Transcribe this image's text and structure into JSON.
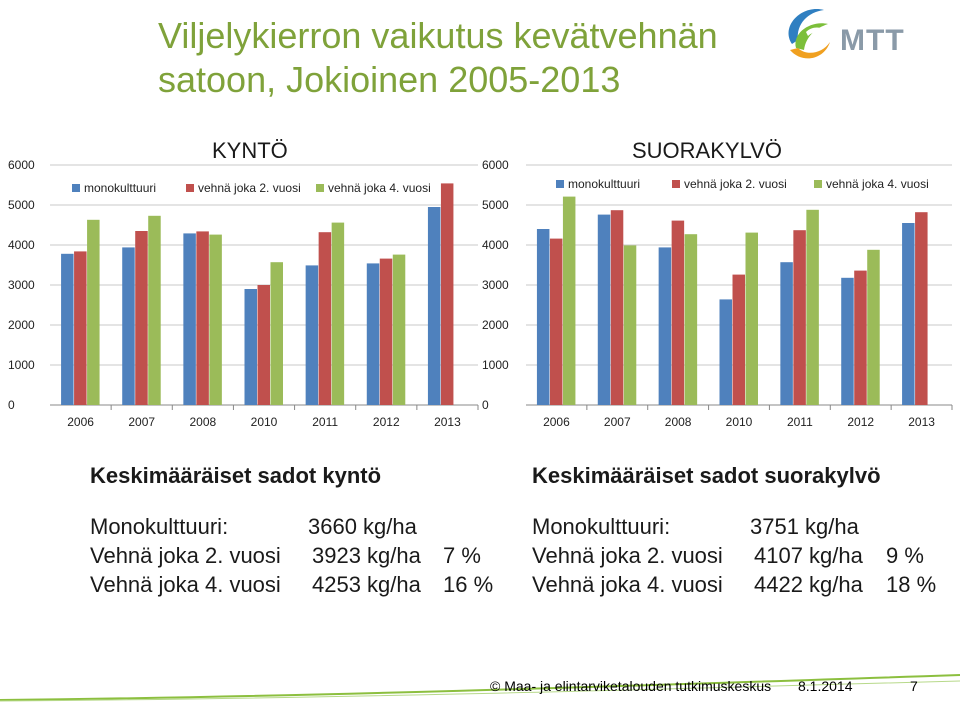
{
  "slide": {
    "title_line1": "Viljelykierron vaikutus kevätvehnän",
    "title_line2": "satoon, Jokioinen 2005-2013",
    "logo_text": "MTT"
  },
  "chart_data": [
    {
      "type": "bar",
      "title": "KYNTÖ",
      "categories": [
        "2006",
        "2007",
        "2008",
        "2010",
        "2011",
        "2012",
        "2013"
      ],
      "series": [
        {
          "name": "monokulttuuri",
          "color": "#4f81bd",
          "values": [
            3780,
            3940,
            4290,
            2900,
            3490,
            3540,
            4950
          ]
        },
        {
          "name": "vehnä joka 2. vuosi",
          "color": "#c0504d",
          "values": [
            3840,
            4350,
            4340,
            3000,
            4320,
            3660,
            5540
          ]
        },
        {
          "name": "vehnä joka 4. vuosi",
          "color": "#9bbb59",
          "values": [
            4630,
            4730,
            4260,
            3570,
            4560,
            3760,
            0
          ]
        }
      ],
      "ylim": [
        0,
        6000
      ],
      "yticks": [
        "0",
        "1000",
        "2000",
        "3000",
        "4000",
        "5000",
        "6000"
      ],
      "grid": true,
      "legend": "top"
    },
    {
      "type": "bar",
      "title": "SUORAKYLVÖ",
      "categories": [
        "2006",
        "2007",
        "2008",
        "2010",
        "2011",
        "2012",
        "2013"
      ],
      "series": [
        {
          "name": "monokulttuuri",
          "color": "#4f81bd",
          "values": [
            4400,
            4760,
            3940,
            2640,
            3570,
            3180,
            4550
          ]
        },
        {
          "name": "vehnä joka 2. vuosi",
          "color": "#c0504d",
          "values": [
            4160,
            4870,
            4610,
            3260,
            4370,
            3360,
            4820
          ]
        },
        {
          "name": "vehnä joka 4. vuosi",
          "color": "#9bbb59",
          "values": [
            5210,
            3990,
            4270,
            4310,
            4880,
            3880,
            0
          ]
        }
      ],
      "ylim": [
        0,
        6000
      ],
      "yticks": [
        "0",
        "1000",
        "2000",
        "3000",
        "4000",
        "5000",
        "6000"
      ],
      "grid": true,
      "legend": "top"
    }
  ],
  "summaries": [
    {
      "heading": "Keskimääräiset sadot kyntö",
      "rows": [
        {
          "label": "Monokulttuuri:",
          "value": "3660 kg/ha",
          "pct": ""
        },
        {
          "label": "Vehnä joka 2. vuosi",
          "value": "3923 kg/ha",
          "pct": "7 %"
        },
        {
          "label": "Vehnä joka 4. vuosi",
          "value": "4253 kg/ha",
          "pct": "16 %"
        }
      ]
    },
    {
      "heading": "Keskimääräiset sadot suorakylvö",
      "rows": [
        {
          "label": "Monokulttuuri:",
          "value": "3751 kg/ha",
          "pct": ""
        },
        {
          "label": "Vehnä joka 2. vuosi",
          "value": "4107 kg/ha",
          "pct": "9 %"
        },
        {
          "label": "Vehnä joka 4. vuosi",
          "value": "4422 kg/ha",
          "pct": "18 %"
        }
      ]
    }
  ],
  "footer": {
    "copyright": "© Maa- ja elintarviketalouden tutkimuskeskus",
    "date": "8.1.2014",
    "page": "7"
  },
  "colors": {
    "title_green": "#7fa23a",
    "footer_green": "#8cbf3f"
  }
}
